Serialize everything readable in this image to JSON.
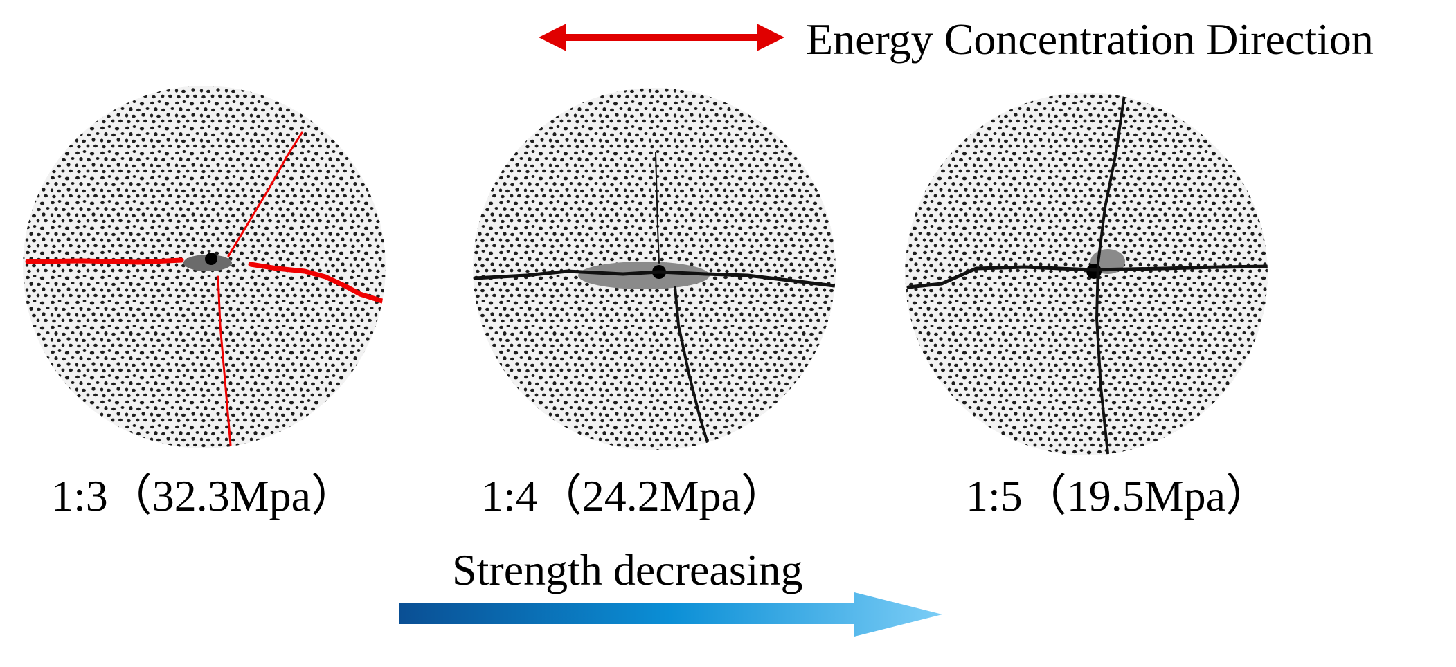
{
  "legend": {
    "label": "Energy Concentration Direction"
  },
  "samples": [
    {
      "label": "1:3（32.3Mpa）"
    },
    {
      "label": "1:4（24.2Mpa）"
    },
    {
      "label": "1:5（19.5Mpa）"
    }
  ],
  "trend": {
    "label": "Strength decreasing"
  }
}
